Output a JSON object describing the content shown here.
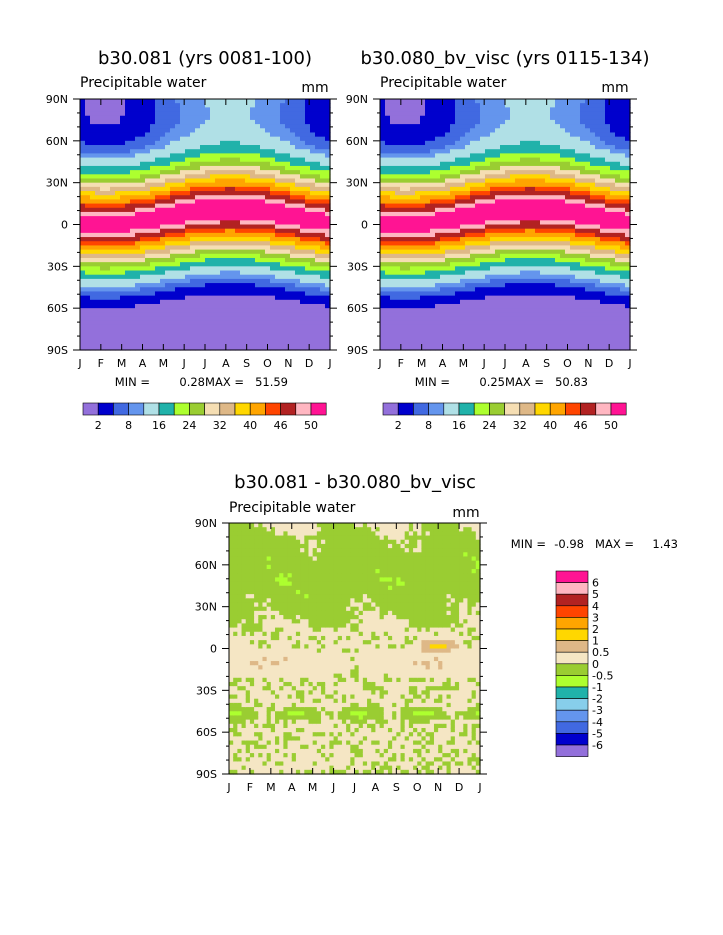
{
  "chart_data": [
    {
      "type": "heatmap",
      "title": "b30.081 (yrs 0081-100)",
      "subtitle": "Precipitable water",
      "units": "mm",
      "x_ticks": [
        "J",
        "F",
        "M",
        "A",
        "M",
        "J",
        "J",
        "A",
        "S",
        "O",
        "N",
        "D",
        "J"
      ],
      "y_ticks": [
        "90N",
        "60N",
        "30N",
        "0",
        "30S",
        "60S",
        "90S"
      ],
      "min_label": "MIN =",
      "min_value": "0.28",
      "max_label": "MAX =",
      "max_value": "51.59",
      "colorbar_labels": [
        "2",
        "8",
        "16",
        "24",
        "32",
        "40",
        "46",
        "50"
      ],
      "colors": [
        "#9370db",
        "#0000cd",
        "#4169e1",
        "#6495ed",
        "#b0e0e6",
        "#20b2aa",
        "#adff2f",
        "#9acd32",
        "#f5deb3",
        "#deb887",
        "#ffd700",
        "#ffa500",
        "#ff4500",
        "#b22222",
        "#ffb6c1",
        "#ff1493"
      ]
    },
    {
      "type": "heatmap",
      "title": "b30.080_bv_visc (yrs 0115-134)",
      "subtitle": "Precipitable water",
      "units": "mm",
      "x_ticks": [
        "J",
        "F",
        "M",
        "A",
        "M",
        "J",
        "J",
        "A",
        "S",
        "O",
        "N",
        "D",
        "J"
      ],
      "y_ticks": [
        "90N",
        "60N",
        "30N",
        "0",
        "30S",
        "60S",
        "90S"
      ],
      "min_label": "MIN =",
      "min_value": "0.25",
      "max_label": "MAX =",
      "max_value": "50.83",
      "colorbar_labels": [
        "2",
        "8",
        "16",
        "24",
        "32",
        "40",
        "46",
        "50"
      ],
      "colors": [
        "#9370db",
        "#0000cd",
        "#4169e1",
        "#6495ed",
        "#b0e0e6",
        "#20b2aa",
        "#adff2f",
        "#9acd32",
        "#f5deb3",
        "#deb887",
        "#ffd700",
        "#ffa500",
        "#ff4500",
        "#b22222",
        "#ffb6c1",
        "#ff1493"
      ]
    },
    {
      "type": "heatmap",
      "title": "b30.081 - b30.080_bv_visc",
      "subtitle": "Precipitable water",
      "units": "mm",
      "x_ticks": [
        "J",
        "F",
        "M",
        "A",
        "M",
        "J",
        "J",
        "A",
        "S",
        "O",
        "N",
        "D",
        "J"
      ],
      "y_ticks": [
        "90N",
        "60N",
        "30N",
        "0",
        "30S",
        "60S",
        "90S"
      ],
      "min_label": "MIN =",
      "min_value": "-0.98",
      "max_label": "MAX =",
      "max_value": "1.43",
      "colorbar_labels": [
        "6",
        "5",
        "4",
        "3",
        "2",
        "1",
        "0.5",
        "0",
        "-0.5",
        "-1",
        "-2",
        "-3",
        "-4",
        "-5",
        "-6"
      ],
      "colors": [
        "#ff1493",
        "#ffb6c1",
        "#b22222",
        "#ff4500",
        "#ffa500",
        "#ffd700",
        "#deb887",
        "#f5e6c4",
        "#9acd32",
        "#adff2f",
        "#20b2aa",
        "#87ceeb",
        "#6495ed",
        "#4169e1",
        "#0000cd",
        "#9370db"
      ]
    }
  ]
}
